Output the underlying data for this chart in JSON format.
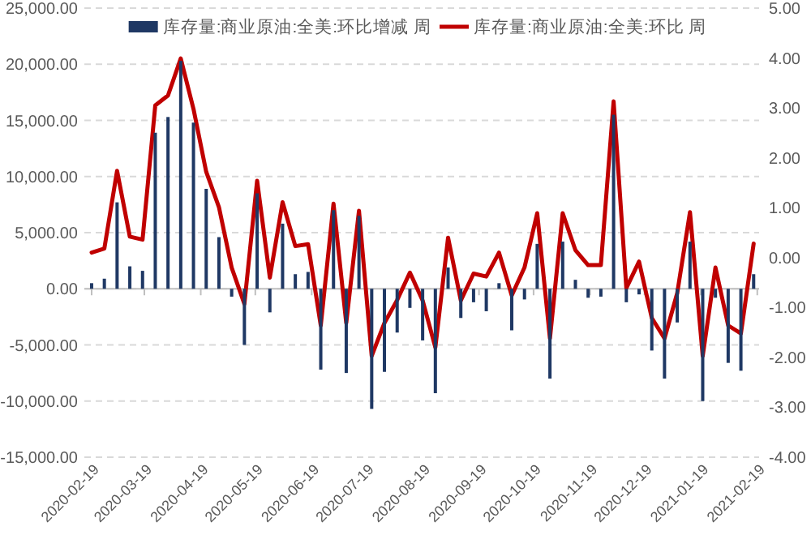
{
  "chart_data": {
    "type": "bar",
    "x": [
      "2020-02-19",
      "2020-02-26",
      "2020-03-04",
      "2020-03-11",
      "2020-03-18",
      "2020-03-25",
      "2020-04-01",
      "2020-04-08",
      "2020-04-15",
      "2020-04-22",
      "2020-04-29",
      "2020-05-06",
      "2020-05-13",
      "2020-05-20",
      "2020-05-27",
      "2020-06-03",
      "2020-06-10",
      "2020-06-17",
      "2020-06-24",
      "2020-07-01",
      "2020-07-08",
      "2020-07-15",
      "2020-07-22",
      "2020-07-29",
      "2020-08-05",
      "2020-08-12",
      "2020-08-19",
      "2020-08-26",
      "2020-09-02",
      "2020-09-09",
      "2020-09-16",
      "2020-09-23",
      "2020-09-30",
      "2020-10-07",
      "2020-10-14",
      "2020-10-21",
      "2020-10-28",
      "2020-11-04",
      "2020-11-11",
      "2020-11-18",
      "2020-11-25",
      "2020-12-02",
      "2020-12-09",
      "2020-12-16",
      "2020-12-23",
      "2020-12-30",
      "2021-01-06",
      "2021-01-13",
      "2021-01-20",
      "2021-01-27",
      "2021-02-03",
      "2021-02-10",
      "2021-02-17"
    ],
    "xlim": [
      "2020-02-15",
      "2021-02-20"
    ],
    "xticks": [
      "2020-02-19",
      "2020-03-19",
      "2020-04-19",
      "2020-05-19",
      "2020-06-19",
      "2020-07-19",
      "2020-08-19",
      "2020-09-19",
      "2020-10-19",
      "2020-11-19",
      "2020-12-19",
      "2021-01-19",
      "2021-02-19"
    ],
    "ylim": [
      -15000,
      25000
    ],
    "yticks": [
      {
        "value": -15000,
        "label": "-15,000.00"
      },
      {
        "value": -10000,
        "label": "-10,000.00"
      },
      {
        "value": -5000,
        "label": "-5,000.00"
      },
      {
        "value": 0,
        "label": "0.00"
      },
      {
        "value": 5000,
        "label": "5,000.00"
      },
      {
        "value": 10000,
        "label": "10,000.00"
      },
      {
        "value": 15000,
        "label": "15,000.00"
      },
      {
        "value": 20000,
        "label": "20,000.00"
      },
      {
        "value": 25000,
        "label": "25,000.00"
      }
    ],
    "y2lim": [
      -4,
      5
    ],
    "y2ticks": [
      {
        "value": -4,
        "label": "-4.00"
      },
      {
        "value": -3,
        "label": "-3.00"
      },
      {
        "value": -2,
        "label": "-2.00"
      },
      {
        "value": -1,
        "label": "-1.00"
      },
      {
        "value": 0,
        "label": "0.00"
      },
      {
        "value": 1,
        "label": "1.00"
      },
      {
        "value": 2,
        "label": "2.00"
      },
      {
        "value": 3,
        "label": "3.00"
      },
      {
        "value": 4,
        "label": "4.00"
      },
      {
        "value": 5,
        "label": "5.00"
      }
    ],
    "grid": "y",
    "legend": "top",
    "series": [
      {
        "name": "库存量:商业原油:全美:环比增减 周",
        "color": "#1f3864",
        "values": [
          500,
          900,
          7700,
          2000,
          1600,
          13900,
          15300,
          20300,
          14800,
          8900,
          4600,
          -700,
          -5000,
          8500,
          -2100,
          5800,
          1300,
          1500,
          -7200,
          7000,
          -7500,
          6500,
          -10700,
          -7400,
          -3900,
          -1700,
          -4600,
          -9300,
          1900,
          -2600,
          -1200,
          -2000,
          500,
          -3700,
          -950,
          4000,
          -8000,
          4200,
          800,
          -800,
          -700,
          15500,
          -1200,
          -500,
          -5500,
          -8000,
          -3000,
          4200,
          -10000,
          -800,
          -6600,
          -7300,
          1300
        ]
      },
      {
        "name": "库存量:商业原油:全美:环比 周",
        "type": "line",
        "axis": "y2",
        "color": "#c00000",
        "values": [
          0.1,
          0.18,
          1.74,
          0.42,
          0.36,
          3.05,
          3.25,
          3.99,
          2.98,
          1.72,
          1.01,
          -0.2,
          -0.93,
          1.54,
          -0.4,
          1.11,
          0.23,
          0.27,
          -1.36,
          1.08,
          -1.31,
          0.94,
          -1.97,
          -1.31,
          -0.85,
          -0.3,
          -0.86,
          -1.8,
          0.4,
          -0.86,
          -0.32,
          -0.38,
          0.1,
          -0.76,
          -0.2,
          0.89,
          -1.62,
          0.89,
          0.15,
          -0.15,
          -0.15,
          3.13,
          -0.61,
          -0.08,
          -1.21,
          -1.62,
          -0.71,
          0.91,
          -1.97,
          -0.2,
          -1.36,
          -1.52,
          0.28
        ]
      }
    ]
  }
}
